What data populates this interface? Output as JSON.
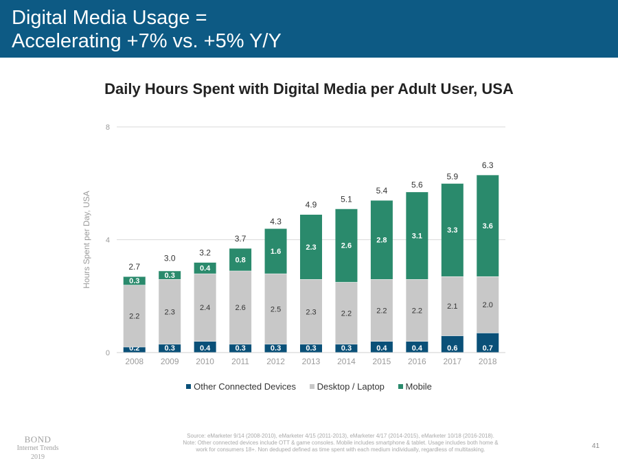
{
  "header": {
    "title": "Digital Media Usage =\nAccelerating +7% vs. +5% Y/Y"
  },
  "colors": {
    "header_bg": "#0d5a84",
    "other_connected_devices": "#0a5078",
    "desktop_laptop": "#c8c8c8",
    "mobile": "#2a8a6c"
  },
  "chart_data": {
    "type": "bar",
    "stacked": true,
    "title": "Daily Hours Spent with Digital Media per Adult User, USA",
    "xlabel": "",
    "ylabel": "Hours Spent per Day, USA",
    "ylim": [
      0,
      8
    ],
    "yticks": [
      "0",
      "4",
      "8"
    ],
    "grid": true,
    "legend_position": "bottom",
    "categories": [
      "2008",
      "2009",
      "2010",
      "2011",
      "2012",
      "2013",
      "2014",
      "2015",
      "2016",
      "2017",
      "2018"
    ],
    "series": [
      {
        "name": "Other Connected Devices",
        "values": [
          0.2,
          0.3,
          0.4,
          0.3,
          0.3,
          0.3,
          0.3,
          0.4,
          0.4,
          0.6,
          0.7
        ]
      },
      {
        "name": "Desktop / Laptop",
        "values": [
          2.2,
          2.3,
          2.4,
          2.6,
          2.5,
          2.3,
          2.2,
          2.2,
          2.2,
          2.1,
          2.0
        ]
      },
      {
        "name": "Mobile",
        "values": [
          0.3,
          0.3,
          0.4,
          0.8,
          1.6,
          2.3,
          2.6,
          2.8,
          3.1,
          3.3,
          3.6
        ]
      }
    ],
    "totals": [
      2.7,
      3.0,
      3.2,
      3.7,
      4.3,
      4.9,
      5.1,
      5.4,
      5.6,
      5.9,
      6.3
    ],
    "segment_labels": [
      [
        "0.2",
        "0.3",
        "0.4",
        "0.3",
        "0.3",
        "0.3",
        "0.3",
        "0.4",
        "0.4",
        "0.6",
        "0.7"
      ],
      [
        "2.2",
        "2.3",
        "2.4",
        "2.6",
        "2.5",
        "2.3",
        "2.2",
        "2.2",
        "2.2",
        "2.1",
        "2.0"
      ],
      [
        "0.3",
        "0.3",
        "0.4",
        "0.8",
        "1.6",
        "2.3",
        "2.6",
        "2.8",
        "3.1",
        "3.3",
        "3.6"
      ]
    ],
    "total_labels": [
      "2.7",
      "3.0",
      "3.2",
      "3.7",
      "4.3",
      "4.9",
      "5.1",
      "5.4",
      "5.6",
      "5.9",
      "6.3"
    ]
  },
  "footer": {
    "logo_name": "BOND",
    "logo_line2": "Internet Trends",
    "logo_line3": "2019",
    "source": "Source: eMarketer 9/14 (2008-2010), eMarketer 4/15 (2011-2013), eMarketer 4/17 (2014-2015), eMarketer 10/18 (2016-2018).\nNote: Other connected devices include OTT & game consoles. Mobile includes smartphone & tablet. Usage includes both home &\nwork for consumers 18+. Non deduped defined as time spent with each medium individually, regardless of multitasking.",
    "page_number": "41"
  }
}
